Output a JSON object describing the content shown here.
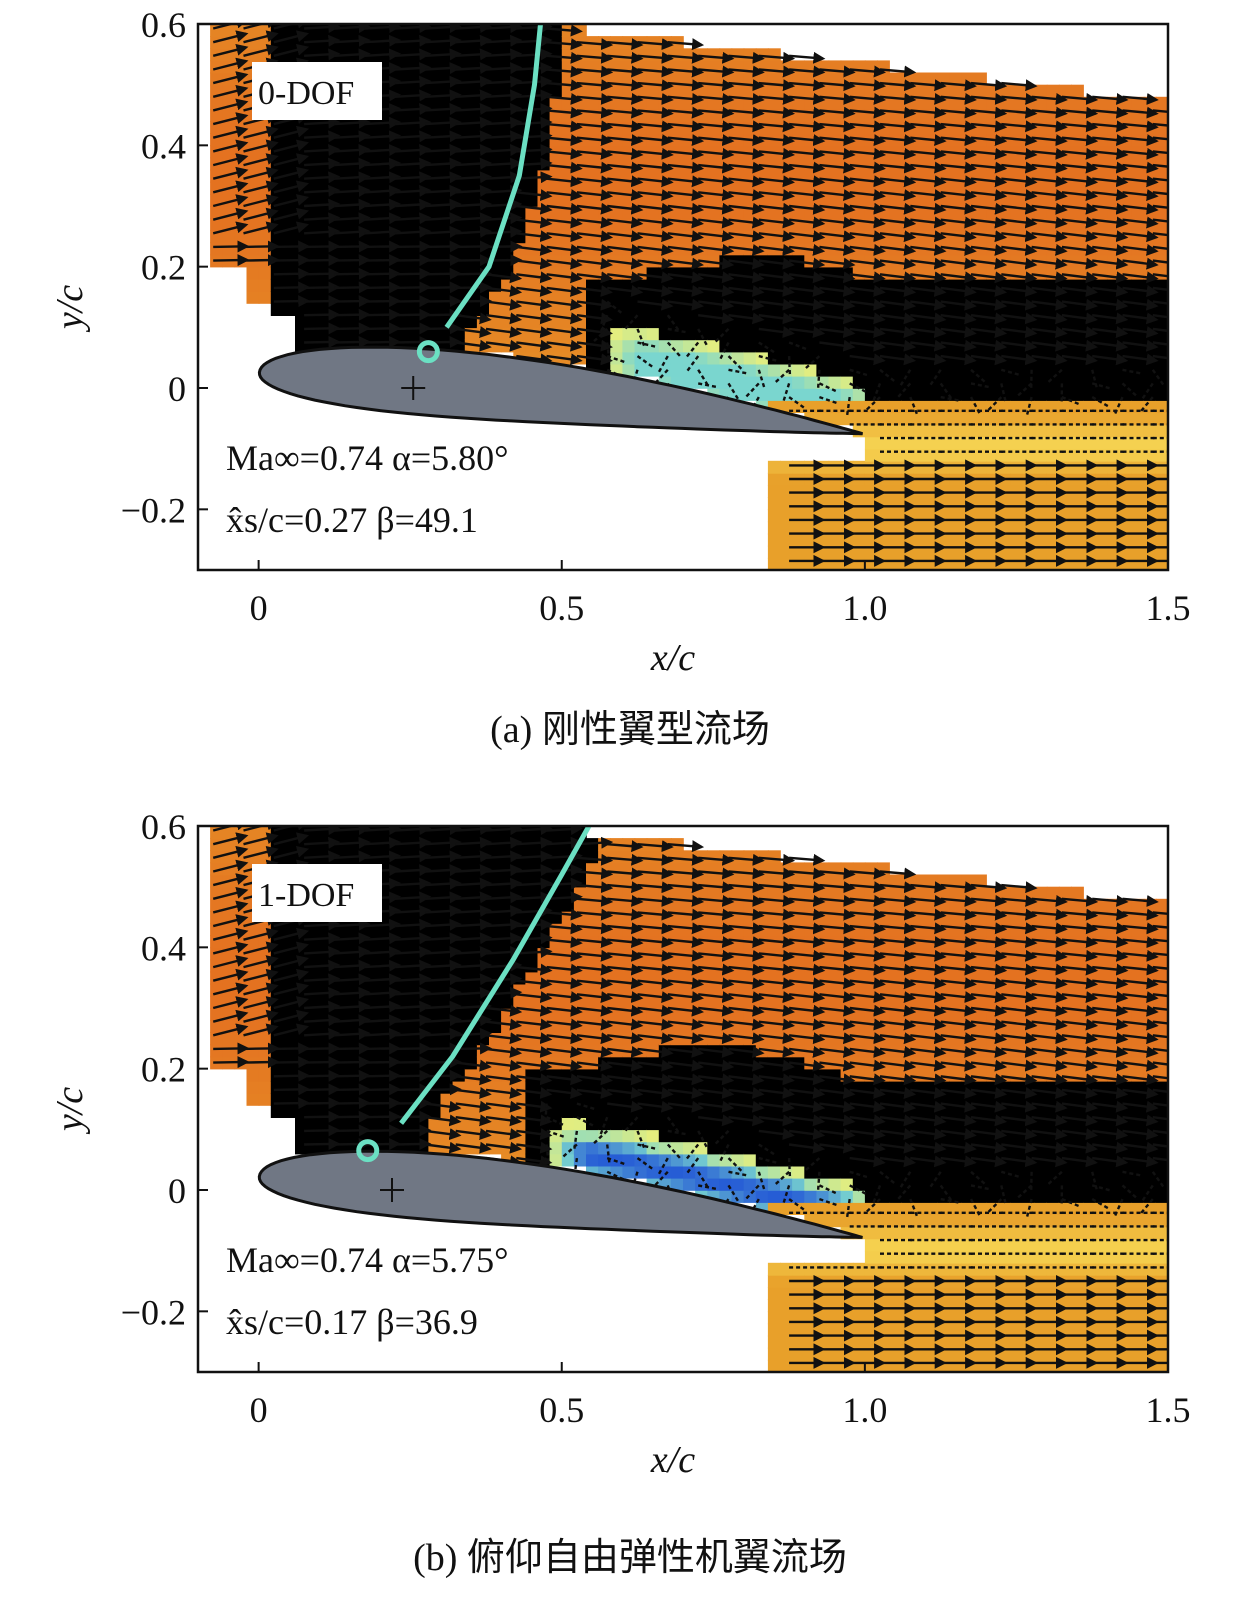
{
  "chart_data": [
    {
      "type": "vector-field",
      "panel_label": "0-DOF",
      "caption": "(a) 刚性翼型流场",
      "xlabel": "x/c",
      "ylabel": "y/c",
      "xlim": [
        -0.1,
        1.5
      ],
      "ylim": [
        -0.3,
        0.6
      ],
      "xticks": [
        "0",
        "0.5",
        "1.0",
        "1.5"
      ],
      "xtick_values": [
        0,
        0.5,
        1.0,
        1.5
      ],
      "yticks": [
        "0.6",
        "0.4",
        "0.2",
        "0",
        "−0.2"
      ],
      "ytick_values": [
        0.6,
        0.4,
        0.2,
        0,
        -0.2
      ],
      "params_line1": "Ma∞=0.74  α=5.80°",
      "params_line2": "x̂s/c=0.27  β=49.1",
      "mach": 0.74,
      "alpha_deg": 5.8,
      "separation_xs_c": 0.27,
      "beta": 49.1,
      "angle_deg": 5.8,
      "pivot": [
        0.255,
        0.0
      ],
      "separation_point": [
        0.28,
        0.06
      ],
      "shock_line": [
        [
          0.31,
          0.1
        ],
        [
          0.38,
          0.2
        ],
        [
          0.43,
          0.35
        ],
        [
          0.455,
          0.5
        ],
        [
          0.465,
          0.6
        ]
      ],
      "separated_region": {
        "x_start": 0.55,
        "x_end": 1.15,
        "blue_strength": 0.35
      },
      "colors": {
        "freestream": "#e8a02a",
        "accelerated": "#e2621d",
        "peak": "#8a1010",
        "supersonic": "#9a2fb8",
        "shock": "#6be0c3",
        "airfoil": "#707784",
        "separated": "#7ad6cf",
        "recirculation": "#1d4fd6",
        "low_speed": "#fff46a"
      }
    },
    {
      "type": "vector-field",
      "panel_label": "1-DOF",
      "caption": "(b) 俯仰自由弹性机翼流场",
      "xlabel": "x/c",
      "ylabel": "y/c",
      "xlim": [
        -0.1,
        1.5
      ],
      "ylim": [
        -0.3,
        0.6
      ],
      "xticks": [
        "0",
        "0.5",
        "1.0",
        "1.5"
      ],
      "xtick_values": [
        0,
        0.5,
        1.0,
        1.5
      ],
      "yticks": [
        "0.6",
        "0.4",
        "0.2",
        "0",
        "−0.2"
      ],
      "ytick_values": [
        0.6,
        0.4,
        0.2,
        0,
        -0.2
      ],
      "params_line1": "Ma∞=0.74  α=5.75°",
      "params_line2": "x̂s/c=0.17  β=36.9",
      "mach": 0.74,
      "alpha_deg": 5.75,
      "separation_xs_c": 0.17,
      "beta": 36.9,
      "angle_deg": 5.75,
      "pivot": [
        0.22,
        0.0
      ],
      "separation_point": [
        0.18,
        0.065
      ],
      "shock_line": [
        [
          0.235,
          0.11
        ],
        [
          0.32,
          0.22
        ],
        [
          0.42,
          0.38
        ],
        [
          0.5,
          0.52
        ],
        [
          0.545,
          0.6
        ]
      ],
      "separated_region": {
        "x_start": 0.45,
        "x_end": 1.28,
        "blue_strength": 1.0
      },
      "colors": {
        "freestream": "#e8a02a",
        "accelerated": "#e2621d",
        "peak": "#8a1010",
        "supersonic": "#9a2fb8",
        "shock": "#6be0c3",
        "airfoil": "#707784",
        "separated": "#7ad6cf",
        "recirculation": "#1d4fd6",
        "low_speed": "#fff46a"
      }
    }
  ]
}
